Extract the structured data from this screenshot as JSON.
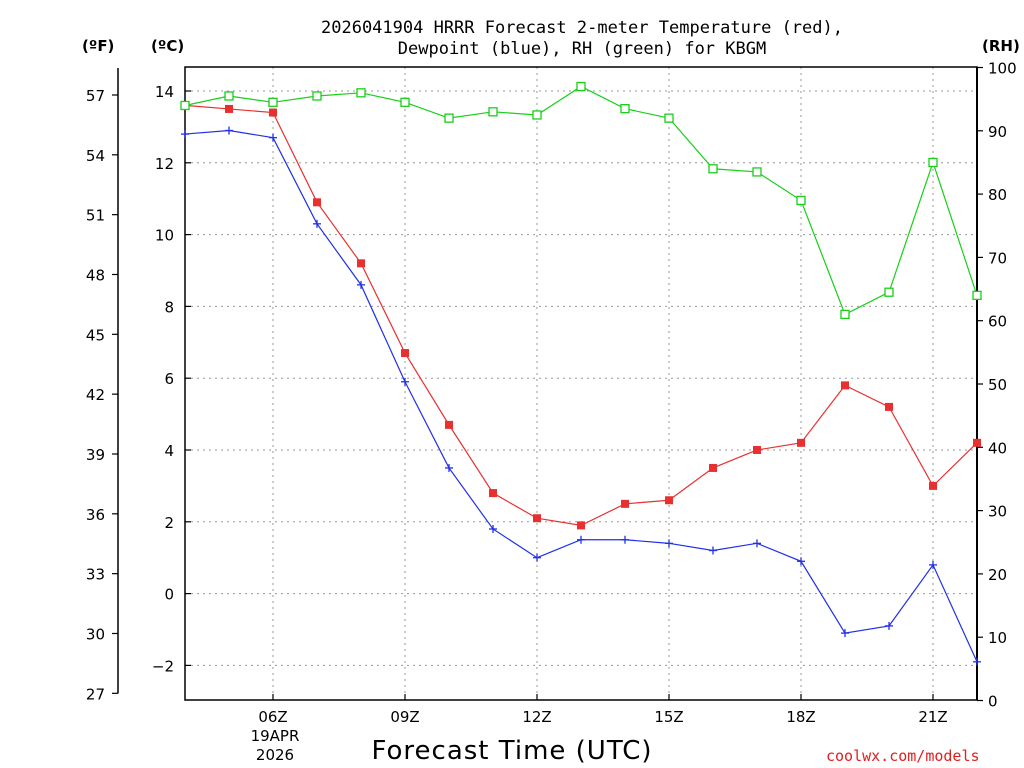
{
  "chart_data": {
    "type": "line",
    "title": [
      "2026041904 HRRR Forecast 2-meter Temperature (red),",
      "Dewpoint (blue), RH (green) for KBGM"
    ],
    "xlabel": "Forecast Time (UTC)",
    "date_label": [
      "19APR",
      "2026"
    ],
    "units": {
      "fahrenheit": "(ºF)",
      "celsius": "(ºC)",
      "rh": "(RH)"
    },
    "credit": "coolwx.com/models",
    "colors": {
      "temperature": "#e83030",
      "dewpoint": "#2030e8",
      "rh": "#18d018",
      "credit": "#e02020"
    },
    "x_hours": [
      4,
      5,
      6,
      7,
      8,
      9,
      10,
      11,
      12,
      13,
      14,
      15,
      16,
      17,
      18,
      19,
      20,
      21,
      22
    ],
    "xlim": [
      4,
      22
    ],
    "x_ticks": [
      {
        "hour": 6,
        "label": "06Z"
      },
      {
        "hour": 9,
        "label": "09Z"
      },
      {
        "hour": 12,
        "label": "12Z"
      },
      {
        "hour": 15,
        "label": "15Z"
      },
      {
        "hour": 18,
        "label": "18Z"
      },
      {
        "hour": 21,
        "label": "21Z"
      }
    ],
    "ylim_celsius": [
      -3,
      15
    ],
    "celsius_ticks": [
      "14",
      "12",
      "10",
      "8",
      "6",
      "4",
      "2",
      "0",
      "−2"
    ],
    "fahrenheit_ticks": [
      "57",
      "54",
      "51",
      "48",
      "45",
      "42",
      "39",
      "36",
      "33",
      "30",
      "27"
    ],
    "ylim_rh": [
      0,
      100
    ],
    "rh_ticks": [
      "100",
      "90",
      "80",
      "70",
      "60",
      "50",
      "40",
      "30",
      "20",
      "10",
      "0"
    ],
    "series": [
      {
        "name": "Temperature (°C)",
        "color": "#e83030",
        "marker": "filled-square",
        "values": [
          13.6,
          13.5,
          13.4,
          10.9,
          9.2,
          6.7,
          4.7,
          2.8,
          2.1,
          1.9,
          2.5,
          2.6,
          3.5,
          4.0,
          4.2,
          5.8,
          5.2,
          3.0,
          4.2
        ]
      },
      {
        "name": "Dewpoint (°C)",
        "color": "#2030e8",
        "marker": "plus",
        "values": [
          12.8,
          12.9,
          12.7,
          10.3,
          8.6,
          5.9,
          3.5,
          1.8,
          1.0,
          1.5,
          1.5,
          1.4,
          1.2,
          1.4,
          0.9,
          -1.1,
          -0.9,
          0.8,
          -1.9
        ]
      },
      {
        "name": "RH (%)",
        "color": "#18d018",
        "marker": "open-square",
        "values": [
          94,
          95.5,
          94.5,
          95.5,
          96,
          94.5,
          92,
          93,
          92.5,
          97,
          93.5,
          92,
          84,
          83.5,
          79,
          61,
          64.5,
          85,
          64
        ]
      }
    ]
  }
}
